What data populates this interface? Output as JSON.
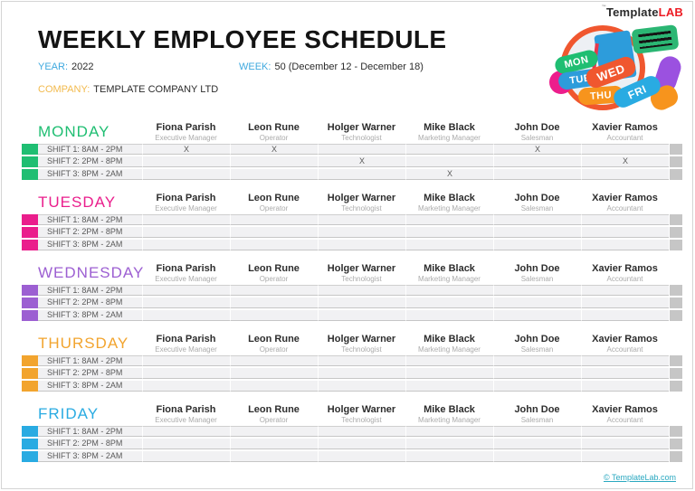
{
  "brand": {
    "part1": "Template",
    "part2": "LAB",
    "trademark": "™"
  },
  "header": {
    "title": "WEEKLY EMPLOYEE SCHEDULE",
    "year_label": "YEAR:",
    "year_value": "2022",
    "week_label": "WEEK:",
    "week_value": "50 (December 12 - December 18)",
    "company_label": "COMPANY:",
    "company_value": "TEMPLATE COMPANY LTD"
  },
  "employees": [
    {
      "name": "Fiona Parish",
      "role": "Executive Manager"
    },
    {
      "name": "Leon Rune",
      "role": "Operator"
    },
    {
      "name": "Holger Warner",
      "role": "Technologist"
    },
    {
      "name": "Mike Black",
      "role": "Marketing Manager"
    },
    {
      "name": "John Doe",
      "role": "Salesman"
    },
    {
      "name": "Xavier Ramos",
      "role": "Accountant"
    }
  ],
  "shift_labels": [
    "SHIFT 1: 8AM - 2PM",
    "SHIFT 2: 2PM - 8PM",
    "SHIFT 3: 8PM - 2AM"
  ],
  "days": [
    {
      "name": "MONDAY",
      "color": "#1FBE72",
      "marks": [
        [
          "X",
          "X",
          "",
          "",
          "X",
          ""
        ],
        [
          "",
          "",
          "X",
          "",
          "",
          "X"
        ],
        [
          "",
          "",
          "",
          "X",
          "",
          ""
        ]
      ]
    },
    {
      "name": "TUESDAY",
      "color": "#EA1E8C",
      "marks": [
        [
          "",
          "",
          "",
          "",
          "",
          ""
        ],
        [
          "",
          "",
          "",
          "",
          "",
          ""
        ],
        [
          "",
          "",
          "",
          "",
          "",
          ""
        ]
      ]
    },
    {
      "name": "WEDNESDAY",
      "color": "#9C5FD2",
      "marks": [
        [
          "",
          "",
          "",
          "",
          "",
          ""
        ],
        [
          "",
          "",
          "",
          "",
          "",
          ""
        ],
        [
          "",
          "",
          "",
          "",
          "",
          ""
        ]
      ]
    },
    {
      "name": "THURSDAY",
      "color": "#F2A42E",
      "marks": [
        [
          "",
          "",
          "",
          "",
          "",
          ""
        ],
        [
          "",
          "",
          "",
          "",
          "",
          ""
        ],
        [
          "",
          "",
          "",
          "",
          "",
          ""
        ]
      ]
    },
    {
      "name": "FRIDAY",
      "color": "#29ABE2",
      "marks": [
        [
          "",
          "",
          "",
          "",
          "",
          ""
        ],
        [
          "",
          "",
          "",
          "",
          "",
          ""
        ],
        [
          "",
          "",
          "",
          "",
          "",
          ""
        ]
      ]
    }
  ],
  "illustration": {
    "ribbons": [
      {
        "label": "MON",
        "color": "#1FBE72"
      },
      {
        "label": "TUE",
        "color": "#2D9CDB"
      },
      {
        "label": "WED",
        "color": "#F0572F"
      },
      {
        "label": "THU",
        "color": "#F7941D"
      },
      {
        "label": "FRI",
        "color": "#29ABE2"
      }
    ]
  },
  "footer": {
    "copyright_link": "© TemplateLab.com"
  },
  "colors": {
    "accent-blue": "#3FA9DF",
    "accent-orange": "#F2BA4D",
    "brand-red": "#ED1C24",
    "footer-teal": "#2AA8C0",
    "row-bg": "#F1F1F3",
    "row-border": "#C6C6C6",
    "end-block": "#C6C6C6"
  }
}
